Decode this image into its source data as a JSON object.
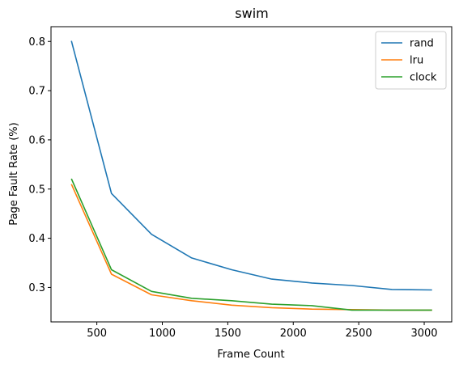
{
  "chart_data": {
    "type": "line",
    "title": "swim",
    "xlabel": "Frame Count",
    "ylabel": "Page Fault Rate (%)",
    "xlim": [
      150,
      3210
    ],
    "ylim": [
      0.23,
      0.83
    ],
    "xticks": [
      500,
      1000,
      1500,
      2000,
      2500,
      3000
    ],
    "yticks": [
      0.3,
      0.4,
      0.5,
      0.6,
      0.7,
      0.8
    ],
    "xtick_labels": [
      "500",
      "1000",
      "1500",
      "2000",
      "2500",
      "3000"
    ],
    "ytick_labels": [
      "0.3",
      "0.4",
      "0.5",
      "0.6",
      "0.7",
      "0.8"
    ],
    "grid": false,
    "legend_position": "top-right",
    "x": [
      306,
      612,
      918,
      1224,
      1530,
      1836,
      2142,
      2448,
      2754,
      3060
    ],
    "series": [
      {
        "name": "rand",
        "color": "#1f77b4",
        "values": [
          0.801,
          0.491,
          0.408,
          0.36,
          0.336,
          0.317,
          0.309,
          0.304,
          0.296,
          0.295
        ]
      },
      {
        "name": "lru",
        "color": "#ff7f0e",
        "values": [
          0.51,
          0.327,
          0.285,
          0.273,
          0.264,
          0.259,
          0.256,
          0.255,
          0.254,
          0.254
        ]
      },
      {
        "name": "clock",
        "color": "#2ca02c",
        "values": [
          0.521,
          0.336,
          0.292,
          0.278,
          0.273,
          0.266,
          0.263,
          0.254,
          0.254,
          0.254
        ]
      }
    ]
  }
}
